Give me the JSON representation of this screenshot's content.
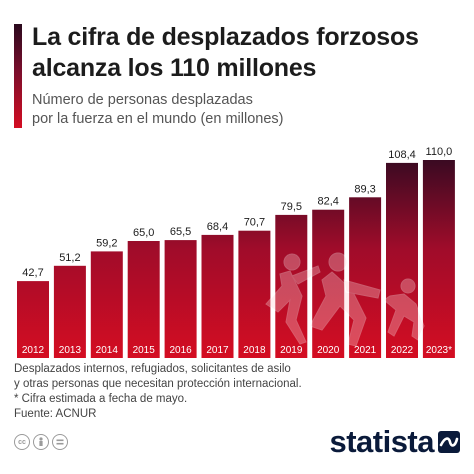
{
  "header": {
    "title_line1": "La cifra de desplazados forzosos",
    "title_line2": "alcanza los 110 millones",
    "subtitle_line1": "Número de personas desplazadas",
    "subtitle_line2": "por la fuerza en el mundo (en millones)"
  },
  "chart_data": {
    "type": "bar",
    "categories": [
      "2012",
      "2013",
      "2014",
      "2015",
      "2016",
      "2017",
      "2018",
      "2019",
      "2020",
      "2021",
      "2022",
      "2023*"
    ],
    "values": [
      42.7,
      51.2,
      59.2,
      65.0,
      65.5,
      68.4,
      70.7,
      79.5,
      82.4,
      89.3,
      108.4,
      110.0
    ],
    "value_labels": [
      "42,7",
      "51,2",
      "59,2",
      "65,0",
      "65,5",
      "68,4",
      "70,7",
      "79,5",
      "82,4",
      "89,3",
      "108,4",
      "110,0"
    ],
    "ylim": [
      0,
      110
    ],
    "grid": false,
    "legend": "none",
    "colors": {
      "bar_bottom": "#d40d22",
      "bar_top": "#3a0a22",
      "label_text": "#ffffff",
      "value_text": "#1c1c1c"
    }
  },
  "footnote": {
    "line1": "Desplazados internos, refugiados, solicitantes de asilo",
    "line2": "y otras personas que necesitan protección internacional.",
    "line3": "* Cifra estimada a fecha de mayo.",
    "source": "Fuente: ACNUR"
  },
  "license_icons": [
    "cc-icon",
    "attribution-icon",
    "noderivs-icon"
  ],
  "brand": {
    "name": "statista"
  }
}
